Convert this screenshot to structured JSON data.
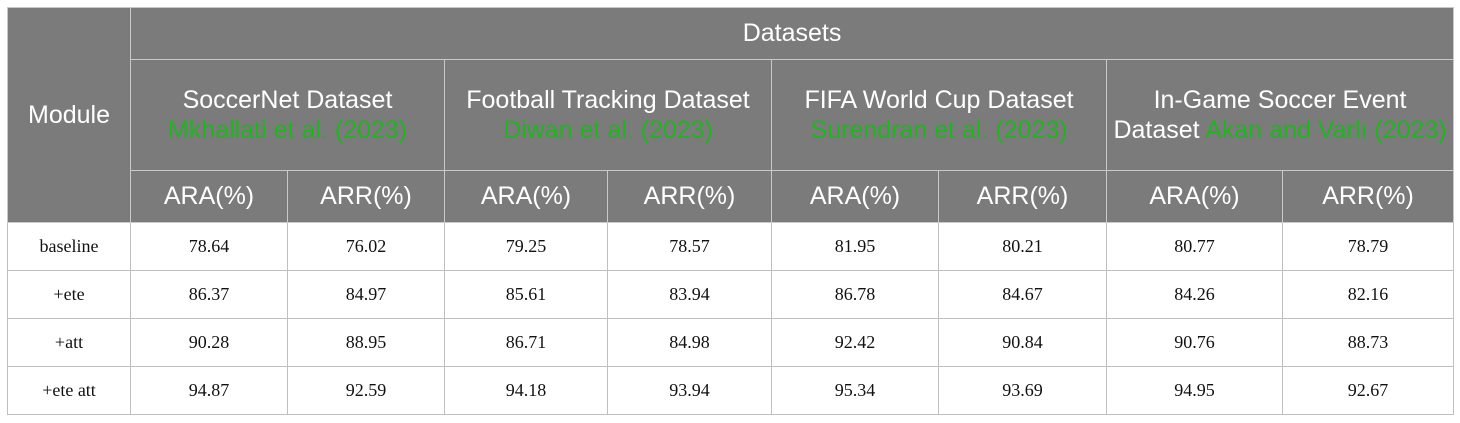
{
  "header": {
    "module_label": "Module",
    "datasets_label": "Datasets",
    "groups": [
      {
        "name": "SoccerNet Dataset",
        "citation": "Mkhallati et al. (2023)"
      },
      {
        "name": "Football Tracking Dataset",
        "citation": "Diwan et al. (2023)"
      },
      {
        "name": "FIFA World Cup Dataset",
        "citation": "Surendran et al. (2023)"
      },
      {
        "name": "In-Game Soccer Event Dataset",
        "citation": "Akan and Varlı (2023)"
      }
    ],
    "metric_labels": [
      "ARA(%)",
      "ARR(%)",
      "ARA(%)",
      "ARR(%)",
      "ARA(%)",
      "ARR(%)",
      "ARA(%)",
      "ARR(%)"
    ]
  },
  "rows": [
    {
      "module": "baseline",
      "values": [
        "78.64",
        "76.02",
        "79.25",
        "78.57",
        "81.95",
        "80.21",
        "80.77",
        "78.79"
      ]
    },
    {
      "module": "+ete",
      "values": [
        "86.37",
        "84.97",
        "85.61",
        "83.94",
        "86.78",
        "84.67",
        "84.26",
        "82.16"
      ]
    },
    {
      "module": "+att",
      "values": [
        "90.28",
        "88.95",
        "86.71",
        "84.98",
        "92.42",
        "90.84",
        "90.76",
        "88.73"
      ]
    },
    {
      "module": "+ete att",
      "values": [
        "94.87",
        "92.59",
        "94.18",
        "93.94",
        "95.34",
        "93.69",
        "94.95",
        "92.67"
      ]
    }
  ],
  "colors": {
    "header_bg": "#7b7b7b",
    "header_text": "#ffffff",
    "citation": "#22b322"
  }
}
